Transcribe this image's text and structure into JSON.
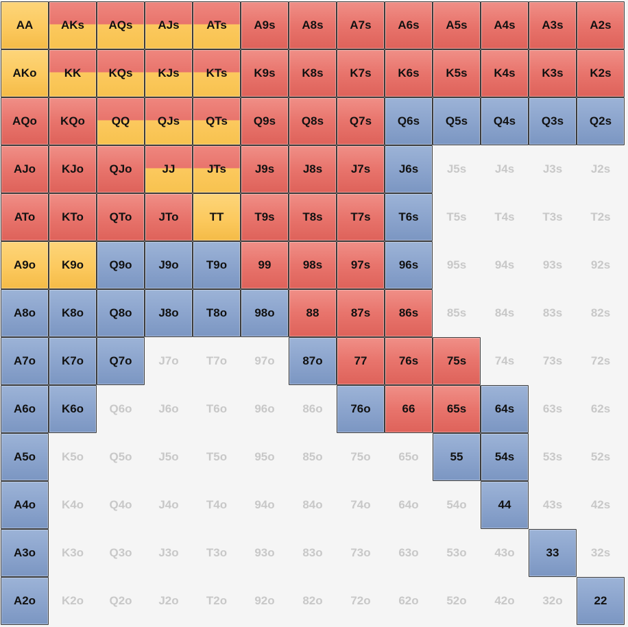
{
  "grid": {
    "labels": [
      [
        "AA",
        "AKs",
        "AQs",
        "AJs",
        "ATs",
        "A9s",
        "A8s",
        "A7s",
        "A6s",
        "A5s",
        "A4s",
        "A3s",
        "A2s"
      ],
      [
        "AKo",
        "KK",
        "KQs",
        "KJs",
        "KTs",
        "K9s",
        "K8s",
        "K7s",
        "K6s",
        "K5s",
        "K4s",
        "K3s",
        "K2s"
      ],
      [
        "AQo",
        "KQo",
        "QQ",
        "QJs",
        "QTs",
        "Q9s",
        "Q8s",
        "Q7s",
        "Q6s",
        "Q5s",
        "Q4s",
        "Q3s",
        "Q2s"
      ],
      [
        "AJo",
        "KJo",
        "QJo",
        "JJ",
        "JTs",
        "J9s",
        "J8s",
        "J7s",
        "J6s",
        "J5s",
        "J4s",
        "J3s",
        "J2s"
      ],
      [
        "ATo",
        "KTo",
        "QTo",
        "JTo",
        "TT",
        "T9s",
        "T8s",
        "T7s",
        "T6s",
        "T5s",
        "T4s",
        "T3s",
        "T2s"
      ],
      [
        "A9o",
        "K9o",
        "Q9o",
        "J9o",
        "T9o",
        "99",
        "98s",
        "97s",
        "96s",
        "95s",
        "94s",
        "93s",
        "92s"
      ],
      [
        "A8o",
        "K8o",
        "Q8o",
        "J8o",
        "T8o",
        "98o",
        "88",
        "87s",
        "86s",
        "85s",
        "84s",
        "83s",
        "82s"
      ],
      [
        "A7o",
        "K7o",
        "Q7o",
        "J7o",
        "T7o",
        "97o",
        "87o",
        "77",
        "76s",
        "75s",
        "74s",
        "73s",
        "72s"
      ],
      [
        "A6o",
        "K6o",
        "Q6o",
        "J6o",
        "T6o",
        "96o",
        "86o",
        "76o",
        "66",
        "65s",
        "64s",
        "63s",
        "62s"
      ],
      [
        "A5o",
        "K5o",
        "Q5o",
        "J5o",
        "T5o",
        "95o",
        "85o",
        "75o",
        "65o",
        "55",
        "54s",
        "53s",
        "52s"
      ],
      [
        "A4o",
        "K4o",
        "Q4o",
        "J4o",
        "T4o",
        "94o",
        "84o",
        "74o",
        "64o",
        "54o",
        "44",
        "43s",
        "42s"
      ],
      [
        "A3o",
        "K3o",
        "Q3o",
        "J3o",
        "T3o",
        "93o",
        "83o",
        "73o",
        "63o",
        "53o",
        "43o",
        "33",
        "32s"
      ],
      [
        "A2o",
        "K2o",
        "Q2o",
        "J2o",
        "T2o",
        "92o",
        "82o",
        "72o",
        "62o",
        "52o",
        "42o",
        "32o",
        "22"
      ]
    ],
    "actions": [
      [
        "Y",
        "RY",
        "RY",
        "RY",
        "RY",
        "R",
        "R",
        "R",
        "R",
        "R",
        "R",
        "R",
        "R"
      ],
      [
        "Y",
        "RY",
        "RY",
        "RY",
        "RY",
        "R",
        "R",
        "R",
        "R",
        "R",
        "R",
        "R",
        "R"
      ],
      [
        "R",
        "R",
        "RY",
        "RY",
        "RY",
        "R",
        "R",
        "R",
        "B",
        "B",
        "B",
        "B",
        "B"
      ],
      [
        "R",
        "R",
        "R",
        "RY",
        "RY",
        "R",
        "R",
        "R",
        "B",
        "-",
        "-",
        "-",
        "-"
      ],
      [
        "R",
        "R",
        "R",
        "R",
        "Y",
        "R",
        "R",
        "R",
        "B",
        "-",
        "-",
        "-",
        "-"
      ],
      [
        "Y",
        "Y",
        "B",
        "B",
        "B",
        "R",
        "R",
        "R",
        "B",
        "-",
        "-",
        "-",
        "-"
      ],
      [
        "B",
        "B",
        "B",
        "B",
        "B",
        "B",
        "R",
        "R",
        "R",
        "-",
        "-",
        "-",
        "-"
      ],
      [
        "B",
        "B",
        "B",
        "-",
        "-",
        "-",
        "B",
        "R",
        "R",
        "R",
        "-",
        "-",
        "-"
      ],
      [
        "B",
        "B",
        "-",
        "-",
        "-",
        "-",
        "-",
        "B",
        "R",
        "R",
        "B",
        "-",
        "-"
      ],
      [
        "B",
        "-",
        "-",
        "-",
        "-",
        "-",
        "-",
        "-",
        "-",
        "B",
        "B",
        "-",
        "-"
      ],
      [
        "B",
        "-",
        "-",
        "-",
        "-",
        "-",
        "-",
        "-",
        "-",
        "-",
        "B",
        "-",
        "-"
      ],
      [
        "B",
        "-",
        "-",
        "-",
        "-",
        "-",
        "-",
        "-",
        "-",
        "-",
        "-",
        "B",
        "-"
      ],
      [
        "B",
        "-",
        "-",
        "-",
        "-",
        "-",
        "-",
        "-",
        "-",
        "-",
        "-",
        "-",
        "B"
      ]
    ],
    "colors": {
      "red": "#e8746c",
      "yellow": "#fcc95e",
      "blue": "#8aa3cc",
      "empty_text": "#c8c8c8",
      "background": "#f5f5f5"
    }
  }
}
